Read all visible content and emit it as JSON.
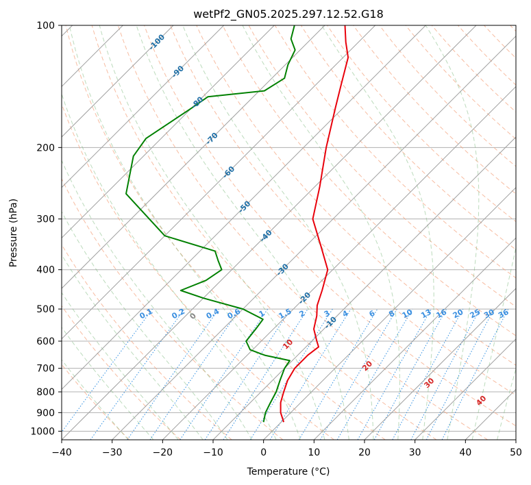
{
  "chart_data": {
    "type": "line",
    "title": "wetPf2_GN05.2025.297.12.52.G18",
    "xlabel": "Temperature (°C)",
    "ylabel": "Pressure (hPa)",
    "xlim": [
      -40,
      50
    ],
    "ylim": [
      1050,
      100
    ],
    "y_scale": "log",
    "grid": true,
    "x_ticks": [
      -40,
      -30,
      -20,
      -10,
      0,
      10,
      20,
      30,
      40,
      50
    ],
    "y_ticks": [
      100,
      200,
      300,
      400,
      500,
      600,
      700,
      800,
      900,
      1000
    ],
    "isotherm_labels": [
      -100,
      -90,
      -80,
      -70,
      -60,
      -50,
      -40,
      -30,
      -20,
      -10
    ],
    "mixing_ratio_labels": [
      "0.1",
      "0.2",
      "0.4",
      "0.6",
      "1",
      "1.5",
      "2",
      "3",
      "4",
      "6",
      "8",
      "10",
      "13",
      "16",
      "20",
      "25",
      "30",
      "36"
    ],
    "moist_adiabat_labels": [
      "0",
      "10",
      "20",
      "30",
      "40"
    ],
    "series": [
      {
        "color": "#e8000b",
        "style": "temperature",
        "points": [
          {
            "p": 950,
            "t": 0.5
          },
          {
            "p": 900,
            "t": -2.0
          },
          {
            "p": 850,
            "t": -4.0
          },
          {
            "p": 800,
            "t": -5.5
          },
          {
            "p": 750,
            "t": -7.0
          },
          {
            "p": 700,
            "t": -8.0
          },
          {
            "p": 650,
            "t": -8.0
          },
          {
            "p": 620,
            "t": -7.5
          },
          {
            "p": 600,
            "t": -9.0
          },
          {
            "p": 560,
            "t": -12.0
          },
          {
            "p": 520,
            "t": -14.0
          },
          {
            "p": 490,
            "t": -16.0
          },
          {
            "p": 450,
            "t": -18.0
          },
          {
            "p": 400,
            "t": -21.0
          },
          {
            "p": 350,
            "t": -27.0
          },
          {
            "p": 300,
            "t": -34.0
          },
          {
            "p": 250,
            "t": -39.0
          },
          {
            "p": 200,
            "t": -45.5
          },
          {
            "p": 160,
            "t": -51.5
          },
          {
            "p": 140,
            "t": -55.0
          },
          {
            "p": 120,
            "t": -59.0
          },
          {
            "p": 110,
            "t": -62.5
          },
          {
            "p": 100,
            "t": -66.0
          }
        ]
      },
      {
        "color": "#008000",
        "style": "dewpoint",
        "points": [
          {
            "p": 950,
            "t": -3.5
          },
          {
            "p": 900,
            "t": -5.0
          },
          {
            "p": 850,
            "t": -6.0
          },
          {
            "p": 800,
            "t": -7.0
          },
          {
            "p": 750,
            "t": -8.5
          },
          {
            "p": 700,
            "t": -10.0
          },
          {
            "p": 670,
            "t": -10.5
          },
          {
            "p": 650,
            "t": -16.5
          },
          {
            "p": 630,
            "t": -20.5
          },
          {
            "p": 600,
            "t": -23.0
          },
          {
            "p": 560,
            "t": -23.5
          },
          {
            "p": 530,
            "t": -24.0
          },
          {
            "p": 500,
            "t": -30.0
          },
          {
            "p": 470,
            "t": -40.0
          },
          {
            "p": 450,
            "t": -46.0
          },
          {
            "p": 425,
            "t": -43.0
          },
          {
            "p": 400,
            "t": -42.0
          },
          {
            "p": 380,
            "t": -44.5
          },
          {
            "p": 360,
            "t": -47.0
          },
          {
            "p": 330,
            "t": -60.0
          },
          {
            "p": 260,
            "t": -76.0
          },
          {
            "p": 210,
            "t": -82.0
          },
          {
            "p": 190,
            "t": -83.0
          },
          {
            "p": 160,
            "t": -80.0
          },
          {
            "p": 150,
            "t": -79.0
          },
          {
            "p": 145,
            "t": -69.0
          },
          {
            "p": 135,
            "t": -67.5
          },
          {
            "p": 125,
            "t": -69.5
          },
          {
            "p": 115,
            "t": -71.0
          },
          {
            "p": 108,
            "t": -74.0
          },
          {
            "p": 100,
            "t": -76.0
          }
        ]
      }
    ]
  }
}
